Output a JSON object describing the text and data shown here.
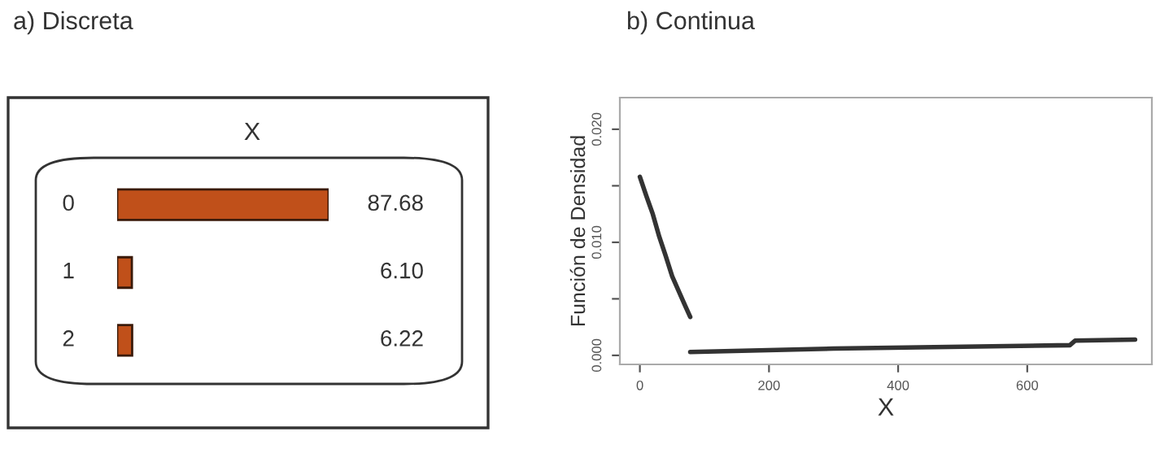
{
  "chart_data": [
    {
      "type": "bar",
      "orientation": "horizontal",
      "title": "a) Discreta",
      "subtitle": "X",
      "categories": [
        "0",
        "1",
        "2"
      ],
      "values": [
        87.68,
        6.1,
        6.22
      ],
      "value_labels": [
        "87.68",
        "6.10",
        "6.22"
      ],
      "color": "#c0501a"
    },
    {
      "type": "line",
      "title": "b) Continua",
      "xlabel": "X",
      "ylabel": "Función de Densidad",
      "series": [
        {
          "color": "#333333",
          "x": [
            0,
            10,
            20,
            30,
            40,
            50,
            60,
            70,
            78
          ],
          "values": [
            0.0158,
            0.0141,
            0.0125,
            0.0105,
            0.0088,
            0.007,
            0.0057,
            0.0044,
            0.0034
          ]
        },
        {
          "color": "#333333",
          "x": [
            78,
            300,
            666,
            674,
            767
          ],
          "values": [
            0.0003,
            0.0006,
            0.0009,
            0.0013,
            0.0014
          ]
        }
      ],
      "xlim": [
        -31,
        793
      ],
      "ylim": [
        -0.0008,
        0.0228
      ],
      "xticks": [
        0,
        200,
        400,
        600
      ],
      "yticks": [
        {
          "value": 0,
          "label": "0.000"
        },
        {
          "value": 0.005,
          "label": null
        },
        {
          "value": 0.01,
          "label": "0.010"
        },
        {
          "value": 0.015,
          "label": null
        },
        {
          "value": 0.02,
          "label": "0.020"
        }
      ],
      "grid": false
    }
  ]
}
